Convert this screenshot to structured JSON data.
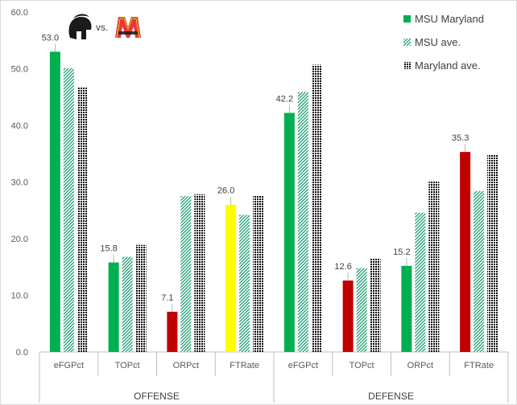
{
  "chart_data": {
    "type": "bar",
    "title": "",
    "ylim": [
      0,
      60
    ],
    "yticks": [
      "0.0",
      "10.0",
      "20.0",
      "30.0",
      "40.0",
      "50.0",
      "60.0"
    ],
    "groups": [
      "OFFENSE",
      "DEFENSE"
    ],
    "categories": [
      {
        "label": "eFGPct",
        "group": "OFFENSE"
      },
      {
        "label": "TOPct",
        "group": "OFFENSE"
      },
      {
        "label": "ORPct",
        "group": "OFFENSE"
      },
      {
        "label": "FTRate",
        "group": "OFFENSE"
      },
      {
        "label": "eFGPct",
        "group": "DEFENSE"
      },
      {
        "label": "TOPct",
        "group": "DEFENSE"
      },
      {
        "label": "ORPct",
        "group": "DEFENSE"
      },
      {
        "label": "FTRate",
        "group": "DEFENSE"
      }
    ],
    "series": [
      {
        "name": "MSU Maryland",
        "values": [
          53.0,
          15.8,
          7.1,
          26.0,
          42.2,
          12.6,
          15.2,
          35.3
        ],
        "labels": [
          "53.0",
          "15.8",
          "7.1",
          "26.0",
          "42.2",
          "12.6",
          "15.2",
          "35.3"
        ],
        "colors": [
          "#00b050",
          "#00b050",
          "#c00000",
          "#ffff00",
          "#00b050",
          "#c00000",
          "#00b050",
          "#c00000"
        ]
      },
      {
        "name": "MSU ave.",
        "values": [
          50.1,
          16.8,
          27.5,
          24.2,
          45.9,
          14.8,
          24.6,
          28.4
        ]
      },
      {
        "name": "Maryland ave.",
        "values": [
          46.7,
          18.9,
          27.8,
          27.6,
          50.7,
          16.5,
          30.1,
          34.9
        ]
      }
    ],
    "legend_position": "top-right",
    "matchup": {
      "vs": "vs.",
      "home_logo": "spartan-helmet",
      "away_logo": "maryland-m"
    }
  },
  "colors": {
    "msu_green": "#00b050",
    "msu_ave": "#1a9c6c",
    "maryland_ave": "#000000",
    "axis": "#bfbfbf"
  }
}
